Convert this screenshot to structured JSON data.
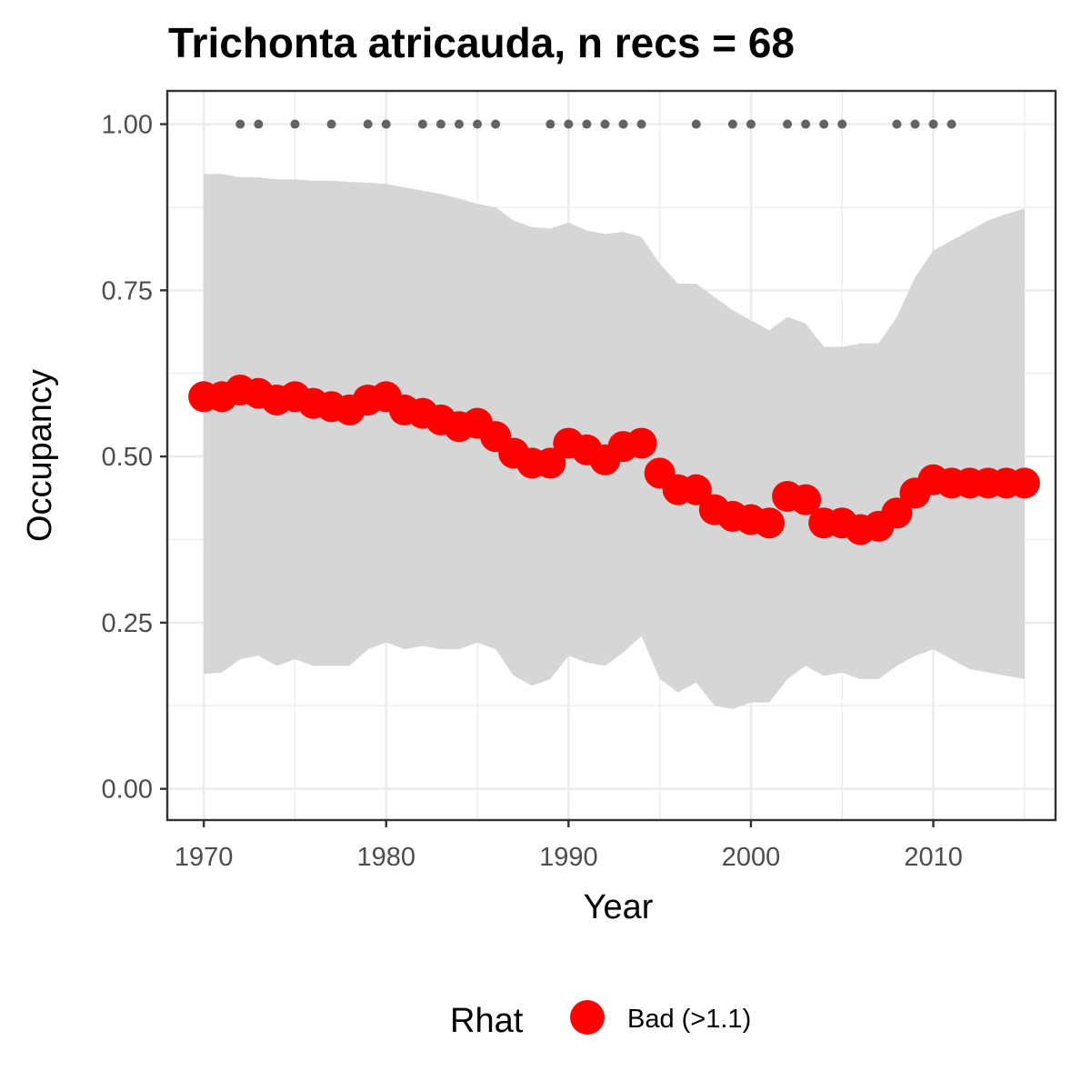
{
  "chart_data": {
    "type": "line",
    "title": "Trichonta atricauda, n recs = 68",
    "xlabel": "Year",
    "ylabel": "Occupancy",
    "xlim": [
      1968,
      2016.7
    ],
    "ylim": [
      -0.047,
      1.05
    ],
    "x_ticks": [
      1970,
      1980,
      1990,
      2000,
      2010
    ],
    "x_tick_labels": [
      "1970",
      "1980",
      "1990",
      "2000",
      "2010"
    ],
    "y_ticks": [
      0,
      0.25,
      0.5,
      0.75,
      1.0
    ],
    "y_tick_labels": [
      "0.00",
      "0.25",
      "0.50",
      "0.75",
      "1.00"
    ],
    "grid": true,
    "legend": {
      "title": "Rhat",
      "placement": "bottom",
      "entries": [
        {
          "label": "Bad (>1.1)",
          "color": "#ff0000"
        }
      ]
    },
    "colors": {
      "points": "#ff0000",
      "band": "#d6d6d6",
      "records": "#636363"
    },
    "x": [
      1970,
      1971,
      1972,
      1973,
      1974,
      1975,
      1976,
      1977,
      1978,
      1979,
      1980,
      1981,
      1982,
      1983,
      1984,
      1985,
      1986,
      1987,
      1988,
      1989,
      1990,
      1991,
      1992,
      1993,
      1994,
      1995,
      1996,
      1997,
      1998,
      1999,
      2000,
      2001,
      2002,
      2003,
      2004,
      2005,
      2006,
      2007,
      2008,
      2009,
      2010,
      2011,
      2012,
      2013,
      2014,
      2015
    ],
    "series": [
      {
        "name": "Occupancy (Rhat Bad >1.1)",
        "values": [
          0.59,
          0.59,
          0.6,
          0.595,
          0.585,
          0.59,
          0.58,
          0.575,
          0.57,
          0.585,
          0.59,
          0.57,
          0.565,
          0.555,
          0.545,
          0.55,
          0.53,
          0.505,
          0.49,
          0.49,
          0.52,
          0.51,
          0.495,
          0.515,
          0.52,
          0.475,
          0.45,
          0.45,
          0.42,
          0.41,
          0.405,
          0.4,
          0.44,
          0.435,
          0.4,
          0.4,
          0.39,
          0.395,
          0.415,
          0.445,
          0.465,
          0.46,
          0.46,
          0.46,
          0.46,
          0.46
        ]
      }
    ],
    "ci_upper": [
      0.925,
      0.925,
      0.92,
      0.92,
      0.917,
      0.917,
      0.915,
      0.915,
      0.913,
      0.912,
      0.91,
      0.905,
      0.9,
      0.895,
      0.888,
      0.88,
      0.875,
      0.855,
      0.845,
      0.843,
      0.852,
      0.84,
      0.835,
      0.838,
      0.83,
      0.79,
      0.76,
      0.76,
      0.74,
      0.72,
      0.705,
      0.69,
      0.71,
      0.7,
      0.665,
      0.665,
      0.67,
      0.67,
      0.71,
      0.77,
      0.81,
      0.825,
      0.84,
      0.855,
      0.865,
      0.873
    ],
    "ci_lower": [
      0.173,
      0.175,
      0.195,
      0.2,
      0.185,
      0.195,
      0.185,
      0.185,
      0.185,
      0.21,
      0.22,
      0.21,
      0.215,
      0.21,
      0.21,
      0.22,
      0.21,
      0.17,
      0.155,
      0.165,
      0.2,
      0.19,
      0.185,
      0.205,
      0.23,
      0.165,
      0.145,
      0.16,
      0.125,
      0.12,
      0.13,
      0.13,
      0.165,
      0.185,
      0.17,
      0.175,
      0.165,
      0.165,
      0.185,
      0.2,
      0.21,
      0.195,
      0.18,
      0.175,
      0.17,
      0.165
    ],
    "record_years": [
      1972,
      1973,
      1975,
      1977,
      1979,
      1980,
      1982,
      1983,
      1984,
      1985,
      1986,
      1989,
      1990,
      1991,
      1992,
      1993,
      1994,
      1997,
      1999,
      2000,
      2002,
      2003,
      2004,
      2005,
      2008,
      2009,
      2010,
      2011
    ],
    "record_value": 1.0
  }
}
